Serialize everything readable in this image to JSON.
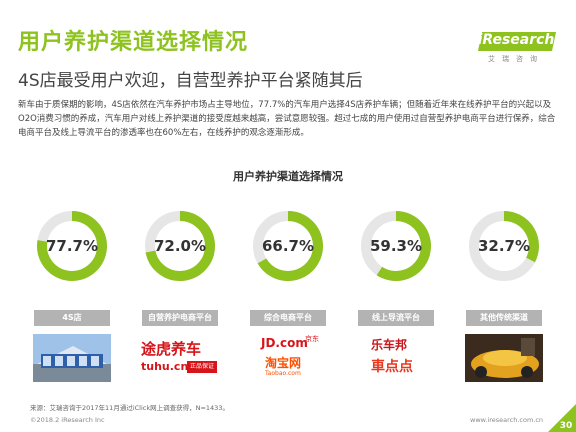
{
  "header": {
    "title": "用户养护渠道选择情况",
    "logo_text": "iResearch",
    "logo_cn": "艾瑞咨询"
  },
  "subtitle": "4S店最受用户欢迎，自营型养护平台紧随其后",
  "description": "新车由于质保期的影响，4S店依然在汽车养护市场占主导地位，77.7%的汽车用户选择4S店养护车辆；但随着近年来在线养护平台的兴起以及O2O消费习惯的养成，汽车用户对线上养护渠道的接受度越来越高，尝试意愿较强。超过七成的用户使用过自营型养护电商平台进行保养，综合电商平台及线上导流平台的渗透率也在60%左右，在线养护的观念逐渐形成。",
  "chart_data": {
    "type": "donut",
    "title": "用户养护渠道选择情况",
    "categories": [
      "4S店",
      "自营养护电商平台",
      "综合电商平台",
      "线上导流平台",
      "其他传统渠道"
    ],
    "values": [
      77.7,
      72.0,
      66.7,
      59.3,
      32.7
    ],
    "value_labels": [
      "77.7%",
      "72.0%",
      "66.7%",
      "59.3%",
      "32.7%"
    ],
    "unit": "%",
    "max": 100
  },
  "brand_logos": {
    "tuhu_main": "途虎养车",
    "tuhu_sub": "tuhu.cn",
    "tuhu_badge": "正品保证",
    "jd": "JD.com",
    "jd_cn": "京东",
    "taobao": "淘宝网",
    "taobao_en": "Taobao.com",
    "lechebang": "乐车邦",
    "chediandian": "車点点"
  },
  "footer": {
    "source": "来源：艾瑞咨询于2017年11月通过iClick网上调查获得，N=1433。",
    "copyright": "©2018.2 iResearch Inc",
    "url": "www.iresearch.com.cn",
    "page": "30"
  },
  "colors": {
    "accent": "#8dc21f",
    "track": "#e6e6e6",
    "label_bg": "#b3b3b3"
  }
}
